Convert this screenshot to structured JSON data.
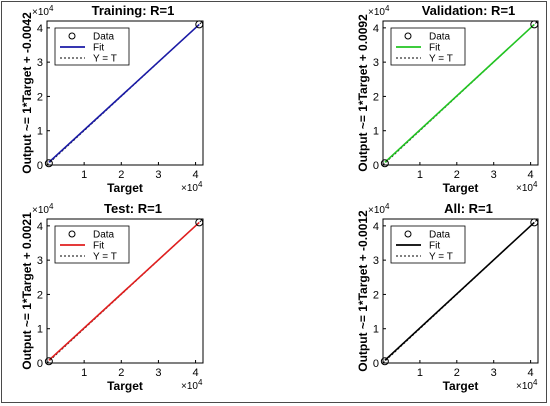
{
  "chart_data": [
    {
      "type": "scatter",
      "title": "Training: R=1",
      "xlabel": "Target",
      "ylabel": "Output ~= 1*Target + -0.0042",
      "xlim": [
        0,
        42000
      ],
      "ylim": [
        0,
        42000
      ],
      "x_ticks": [
        "1",
        "2",
        "3",
        "4"
      ],
      "y_ticks": [
        "0",
        "1",
        "2",
        "3",
        "4"
      ],
      "x_exponent": "×10",
      "x_exponent_power": "4",
      "y_exponent": "×10",
      "y_exponent_power": "4",
      "fit_color": "#1a1aa6",
      "legend": [
        "Data",
        "Fit",
        "Y = T"
      ],
      "series": [
        {
          "name": "Data",
          "marker": "circle",
          "points": [
            [
              500,
              500
            ],
            [
              41000,
              41000
            ]
          ]
        },
        {
          "name": "Fit",
          "slope": 1,
          "intercept": -0.0042
        },
        {
          "name": "Y = T",
          "slope": 1,
          "intercept": 0
        }
      ]
    },
    {
      "type": "scatter",
      "title": "Validation: R=1",
      "xlabel": "Target",
      "ylabel": "Output ~= 1*Target + 0.0092",
      "xlim": [
        0,
        42000
      ],
      "ylim": [
        0,
        42000
      ],
      "x_ticks": [
        "1",
        "2",
        "3",
        "4"
      ],
      "y_ticks": [
        "0",
        "1",
        "2",
        "3",
        "4"
      ],
      "x_exponent": "×10",
      "x_exponent_power": "4",
      "y_exponent": "×10",
      "y_exponent_power": "4",
      "fit_color": "#22c422",
      "legend": [
        "Data",
        "Fit",
        "Y = T"
      ],
      "series": [
        {
          "name": "Data",
          "marker": "circle",
          "points": [
            [
              500,
              500
            ],
            [
              41000,
              41000
            ]
          ]
        },
        {
          "name": "Fit",
          "slope": 1,
          "intercept": 0.0092
        },
        {
          "name": "Y = T",
          "slope": 1,
          "intercept": 0
        }
      ]
    },
    {
      "type": "scatter",
      "title": "Test: R=1",
      "xlabel": "Target",
      "ylabel": "Output ~= 1*Target + 0.0021",
      "xlim": [
        0,
        42000
      ],
      "ylim": [
        0,
        42000
      ],
      "x_ticks": [
        "1",
        "2",
        "3",
        "4"
      ],
      "y_ticks": [
        "0",
        "1",
        "2",
        "3",
        "4"
      ],
      "x_exponent": "×10",
      "x_exponent_power": "4",
      "y_exponent": "×10",
      "y_exponent_power": "4",
      "fit_color": "#e01e1e",
      "legend": [
        "Data",
        "Fit",
        "Y = T"
      ],
      "series": [
        {
          "name": "Data",
          "marker": "circle",
          "points": [
            [
              500,
              500
            ],
            [
              41000,
              41000
            ]
          ]
        },
        {
          "name": "Fit",
          "slope": 1,
          "intercept": 0.0021
        },
        {
          "name": "Y = T",
          "slope": 1,
          "intercept": 0
        }
      ]
    },
    {
      "type": "scatter",
      "title": "All: R=1",
      "xlabel": "Target",
      "ylabel": "Output ~= 1*Target + -0.0012",
      "xlim": [
        0,
        42000
      ],
      "ylim": [
        0,
        42000
      ],
      "x_ticks": [
        "1",
        "2",
        "3",
        "4"
      ],
      "y_ticks": [
        "0",
        "1",
        "2",
        "3",
        "4"
      ],
      "x_exponent": "×10",
      "x_exponent_power": "4",
      "y_exponent": "×10",
      "y_exponent_power": "4",
      "fit_color": "#000000",
      "legend": [
        "Data",
        "Fit",
        "Y = T"
      ],
      "series": [
        {
          "name": "Data",
          "marker": "circle",
          "points": [
            [
              500,
              500
            ],
            [
              41000,
              41000
            ]
          ]
        },
        {
          "name": "Fit",
          "slope": 1,
          "intercept": -0.0012
        },
        {
          "name": "Y = T",
          "slope": 1,
          "intercept": 0
        }
      ]
    }
  ]
}
